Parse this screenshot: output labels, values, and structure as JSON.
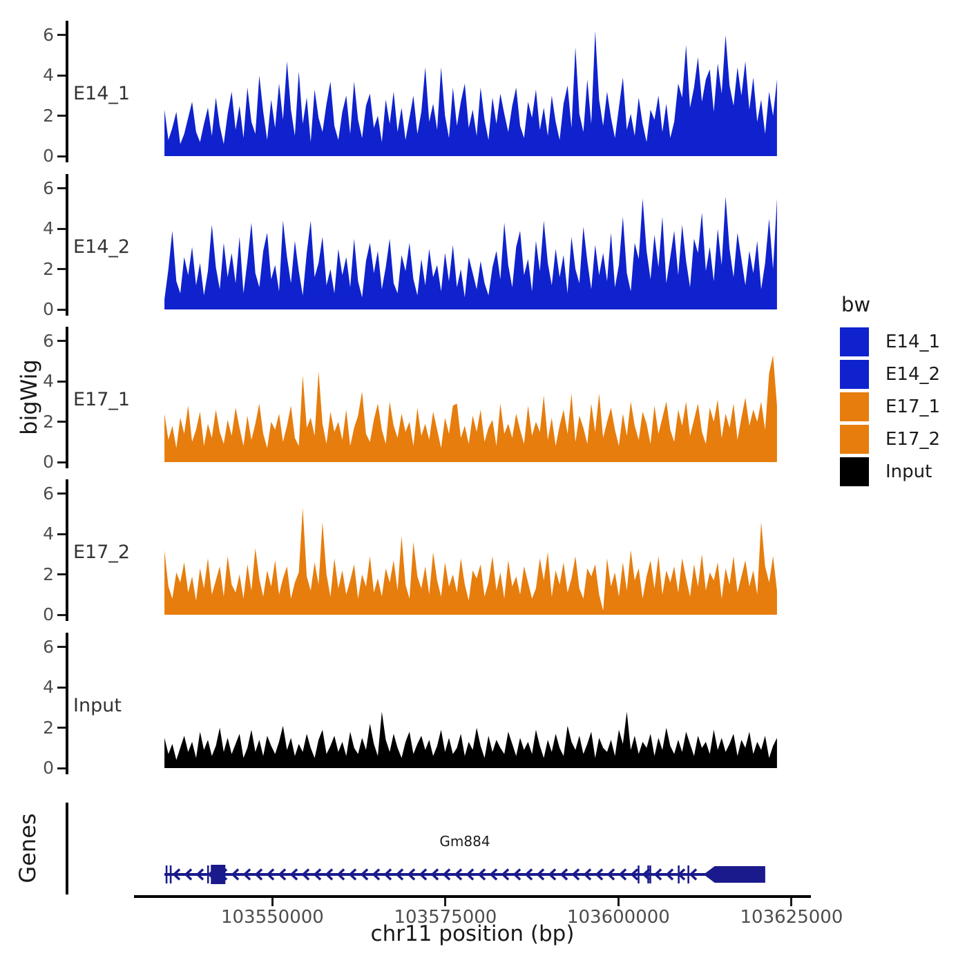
{
  "figure": {
    "background": "#ffffff"
  },
  "axes": {
    "y_label": "bigWig",
    "genes_label": "Genes",
    "x_label": "chr11 position (bp)",
    "y_tick_labels": [
      "0",
      "2",
      "4",
      "6"
    ],
    "x_ticks": [
      {
        "bp": 103550000,
        "label": "103550000"
      },
      {
        "bp": 103575000,
        "label": "103575000"
      },
      {
        "bp": 103600000,
        "label": "103600000"
      },
      {
        "bp": 103625000,
        "label": "103625000"
      }
    ]
  },
  "legend": {
    "title": "bw",
    "items": [
      {
        "label": "E14_1",
        "color": "#0F22CE"
      },
      {
        "label": "E14_2",
        "color": "#0F22CE"
      },
      {
        "label": "E17_1",
        "color": "#E67D0D"
      },
      {
        "label": "E17_2",
        "color": "#E67D0D"
      },
      {
        "label": "Input",
        "color": "#000000"
      }
    ]
  },
  "chart_data": {
    "type": "area",
    "title": "",
    "xlabel": "chr11 position (bp)",
    "ylabel": "bigWig",
    "legend_title": "bw",
    "xlim": [
      103530000,
      103627800
    ],
    "ylim": [
      0,
      6.3
    ],
    "yticks": [
      0,
      2,
      4,
      6
    ],
    "xticks": [
      103550000,
      103575000,
      103600000,
      103625000
    ],
    "data_start": 103534400,
    "data_end": 103622900,
    "tracks": [
      {
        "name": "E14_1",
        "color": "#0F22CE",
        "values": [
          2.3,
          0.8,
          1.4,
          2.2,
          0.6,
          1.1,
          1.9,
          2.7,
          1.2,
          0.7,
          1.6,
          2.4,
          1.0,
          2.9,
          1.5,
          0.6,
          2.1,
          3.2,
          1.3,
          2.5,
          0.9,
          3.4,
          1.7,
          1.1,
          4.0,
          2.2,
          0.8,
          2.8,
          1.4,
          3.6,
          1.8,
          4.7,
          2.3,
          1.0,
          4.2,
          1.6,
          2.9,
          0.7,
          3.3,
          1.9,
          1.2,
          2.6,
          3.7,
          1.5,
          0.8,
          2.2,
          3.0,
          1.1,
          3.7,
          1.8,
          0.9,
          2.5,
          3.1,
          1.4,
          2.0,
          0.7,
          2.8,
          1.6,
          3.2,
          1.2,
          2.4,
          0.8,
          1.9,
          3.0,
          1.1,
          2.2,
          4.4,
          1.7,
          2.6,
          1.3,
          4.4,
          2.0,
          0.9,
          3.4,
          1.5,
          2.7,
          3.6,
          1.4,
          2.3,
          1.0,
          3.4,
          1.8,
          0.8,
          2.9,
          1.6,
          3.1,
          2.1,
          1.2,
          2.5,
          3.4,
          1.5,
          0.9,
          2.7,
          1.9,
          3.3,
          1.3,
          2.4,
          1.0,
          3.0,
          1.7,
          0.8,
          2.6,
          3.5,
          1.4,
          5.4,
          2.1,
          1.2,
          3.8,
          1.6,
          6.2,
          2.8,
          1.5,
          3.2,
          1.9,
          0.9,
          2.4,
          3.9,
          1.3,
          2.1,
          1.0,
          2.9,
          1.6,
          0.7,
          2.3,
          1.8,
          3.0,
          1.2,
          2.6,
          0.9,
          1.7,
          3.6,
          2.9,
          5.5,
          2.4,
          3.4,
          4.9,
          2.7,
          3.8,
          4.3,
          2.2,
          4.6,
          3.1,
          6.0,
          3.5,
          2.5,
          4.4,
          3.0,
          4.7,
          2.3,
          3.9,
          1.7,
          2.8,
          1.1,
          3.2,
          2.0,
          3.8
        ]
      },
      {
        "name": "E14_2",
        "color": "#0F22CE",
        "values": [
          0.5,
          2.0,
          3.9,
          1.4,
          0.8,
          2.6,
          1.7,
          3.1,
          1.2,
          2.3,
          0.7,
          1.9,
          4.2,
          2.1,
          1.0,
          3.3,
          1.6,
          2.8,
          1.3,
          3.6,
          0.8,
          2.4,
          4.3,
          1.8,
          1.1,
          2.9,
          3.8,
          1.5,
          2.2,
          0.9,
          4.4,
          2.6,
          1.3,
          3.4,
          1.9,
          0.7,
          2.8,
          4.4,
          1.6,
          2.3,
          3.6,
          1.2,
          2.0,
          0.8,
          3.0,
          1.7,
          2.6,
          1.1,
          3.5,
          1.4,
          0.6,
          2.4,
          3.3,
          1.8,
          2.9,
          1.0,
          2.1,
          3.5,
          1.3,
          0.8,
          2.7,
          1.9,
          3.3,
          1.5,
          0.7,
          2.5,
          1.2,
          3.0,
          1.6,
          2.2,
          0.9,
          2.8,
          1.4,
          3.2,
          1.1,
          2.0,
          0.6,
          2.6,
          1.8,
          1.0,
          2.4,
          1.3,
          0.7,
          2.1,
          2.9,
          1.5,
          4.3,
          2.2,
          1.1,
          3.1,
          3.9,
          1.7,
          2.5,
          0.9,
          3.4,
          1.9,
          4.4,
          2.3,
          1.2,
          3.0,
          1.6,
          2.7,
          0.8,
          3.6,
          2.0,
          1.3,
          4.1,
          2.4,
          1.0,
          3.2,
          1.7,
          2.8,
          1.4,
          3.8,
          1.1,
          2.2,
          4.6,
          1.8,
          0.9,
          3.3,
          2.5,
          5.5,
          2.9,
          1.5,
          3.7,
          2.1,
          4.6,
          1.3,
          2.6,
          3.9,
          1.7,
          4.2,
          2.4,
          1.1,
          3.5,
          2.8,
          4.8,
          1.9,
          3.1,
          1.4,
          4.0,
          2.2,
          5.6,
          3.0,
          1.6,
          3.8,
          2.5,
          1.2,
          2.9,
          1.8,
          3.4,
          1.0,
          2.3,
          4.5,
          2.0,
          5.5
        ]
      },
      {
        "name": "E17_1",
        "color": "#E67D0D",
        "values": [
          2.4,
          1.1,
          1.8,
          0.7,
          2.2,
          1.4,
          2.8,
          1.0,
          1.6,
          2.5,
          0.8,
          1.9,
          1.2,
          2.6,
          1.5,
          0.9,
          2.1,
          1.3,
          2.7,
          1.7,
          0.8,
          2.3,
          1.1,
          1.9,
          2.9,
          1.4,
          0.7,
          2.0,
          1.6,
          2.4,
          1.0,
          1.8,
          2.8,
          1.2,
          0.8,
          4.3,
          1.7,
          2.2,
          1.3,
          4.5,
          1.9,
          0.9,
          2.5,
          1.5,
          2.0,
          1.1,
          2.6,
          0.8,
          1.7,
          2.3,
          3.5,
          1.4,
          1.0,
          2.1,
          2.9,
          1.6,
          0.9,
          3.0,
          1.8,
          1.2,
          2.4,
          1.5,
          2.0,
          0.8,
          2.7,
          1.3,
          1.9,
          1.1,
          2.5,
          1.6,
          0.7,
          2.2,
          1.4,
          2.8,
          2.9,
          1.2,
          1.8,
          0.9,
          2.3,
          1.5,
          2.6,
          1.0,
          1.7,
          2.1,
          0.8,
          2.9,
          1.4,
          1.9,
          1.2,
          2.4,
          1.6,
          0.9,
          2.8,
          1.3,
          2.0,
          1.5,
          3.3,
          1.1,
          2.2,
          0.8,
          1.8,
          2.6,
          1.4,
          3.4,
          1.0,
          2.3,
          1.7,
          0.9,
          2.9,
          1.5,
          3.4,
          1.2,
          2.0,
          2.7,
          1.6,
          0.8,
          2.4,
          1.3,
          3.0,
          1.8,
          1.1,
          2.5,
          1.9,
          0.9,
          2.8,
          1.4,
          2.2,
          3.0,
          1.6,
          1.0,
          2.6,
          1.8,
          3.0,
          1.3,
          2.1,
          2.9,
          1.5,
          0.9,
          2.7,
          2.0,
          3.1,
          1.2,
          2.4,
          1.7,
          2.9,
          1.1,
          2.2,
          3.2,
          1.8,
          2.6,
          2.0,
          3.0,
          1.6,
          4.4,
          5.3,
          2.8
        ]
      },
      {
        "name": "E17_2",
        "color": "#E67D0D",
        "values": [
          3.2,
          1.4,
          0.8,
          2.1,
          1.6,
          2.6,
          1.1,
          1.9,
          0.7,
          2.3,
          1.3,
          2.8,
          1.0,
          1.7,
          2.4,
          0.9,
          2.9,
          1.5,
          1.1,
          2.0,
          0.8,
          2.5,
          1.2,
          3.3,
          1.8,
          0.9,
          2.2,
          1.4,
          2.7,
          1.0,
          1.8,
          2.4,
          0.8,
          1.6,
          2.1,
          5.3,
          1.9,
          1.2,
          2.6,
          1.5,
          4.6,
          2.0,
          0.9,
          2.8,
          1.3,
          2.2,
          1.0,
          1.7,
          2.5,
          0.8,
          2.0,
          1.4,
          2.9,
          1.1,
          1.8,
          0.9,
          2.3,
          1.6,
          2.7,
          1.2,
          3.9,
          1.5,
          0.8,
          3.6,
          1.9,
          1.3,
          2.4,
          1.0,
          3.1,
          1.7,
          0.9,
          2.6,
          1.4,
          2.0,
          1.1,
          2.8,
          1.5,
          0.7,
          2.2,
          1.8,
          2.5,
          0.9,
          1.6,
          2.9,
          1.2,
          2.1,
          0.8,
          2.7,
          1.4,
          1.9,
          1.0,
          2.4,
          1.6,
          0.8,
          1.3,
          2.8,
          1.7,
          3.1,
          0.9,
          2.2,
          1.5,
          2.6,
          1.1,
          1.8,
          2.9,
          1.3,
          0.8,
          2.3,
          1.9,
          2.5,
          1.0,
          0.2,
          2.8,
          1.4,
          2.1,
          0.9,
          2.6,
          1.2,
          3.2,
          1.7,
          2.3,
          0.8,
          1.9,
          2.7,
          1.3,
          2.9,
          1.0,
          2.2,
          1.6,
          2.4,
          1.1,
          2.8,
          1.8,
          0.9,
          2.5,
          1.4,
          3.0,
          1.2,
          2.1,
          1.7,
          2.6,
          0.8,
          2.3,
          1.5,
          2.9,
          1.1,
          1.9,
          2.7,
          1.4,
          2.2,
          1.0,
          4.6,
          2.4,
          1.6,
          2.9,
          1.2
        ]
      },
      {
        "name": "Input",
        "color": "#000000",
        "values": [
          1.5,
          0.7,
          1.2,
          0.4,
          1.0,
          1.6,
          0.8,
          1.3,
          0.5,
          1.8,
          0.9,
          1.4,
          0.6,
          1.1,
          2.0,
          0.8,
          1.5,
          0.7,
          1.2,
          1.7,
          0.5,
          1.0,
          1.9,
          0.8,
          1.4,
          0.6,
          1.6,
          1.1,
          0.7,
          1.3,
          2.1,
          0.9,
          1.5,
          0.6,
          1.2,
          0.8,
          1.7,
          1.0,
          0.5,
          1.4,
          1.9,
          0.7,
          1.1,
          1.6,
          0.8,
          1.3,
          0.6,
          1.8,
          1.0,
          0.7,
          1.5,
          0.9,
          2.2,
          1.2,
          0.6,
          2.8,
          1.4,
          0.8,
          1.7,
          1.0,
          0.5,
          1.3,
          1.8,
          0.7,
          1.2,
          1.6,
          0.9,
          1.4,
          0.6,
          1.1,
          1.9,
          0.8,
          1.5,
          0.7,
          1.0,
          1.7,
          0.6,
          1.3,
          0.9,
          2.0,
          1.1,
          0.5,
          1.6,
          0.8,
          1.4,
          1.0,
          0.7,
          1.8,
          1.2,
          0.6,
          1.5,
          0.9,
          1.3,
          0.7,
          1.9,
          1.1,
          0.5,
          1.4,
          0.8,
          1.7,
          1.0,
          0.6,
          2.1,
          1.3,
          0.9,
          1.6,
          0.7,
          1.2,
          1.8,
          0.5,
          1.5,
          1.0,
          0.8,
          1.4,
          0.6,
          1.9,
          1.2,
          2.8,
          0.9,
          1.6,
          0.7,
          1.3,
          1.0,
          1.7,
          0.6,
          1.5,
          0.9,
          2.0,
          1.1,
          0.7,
          1.4,
          0.8,
          1.8,
          1.2,
          0.6,
          1.6,
          1.0,
          1.3,
          0.7,
          1.9,
          0.9,
          1.5,
          0.8,
          1.2,
          1.7,
          0.6,
          1.4,
          1.0,
          1.8,
          0.7,
          1.3,
          0.9,
          1.6,
          0.5,
          1.1,
          1.5
        ]
      }
    ],
    "gene": {
      "name": "Gm884",
      "chrom": "chr11",
      "strand": "-",
      "color": "#1A1A8C",
      "start": 103534400,
      "end": 103621200,
      "line": [
        103534400,
        103612500
      ],
      "small_exon": [
        103541100,
        103543200
      ],
      "big_exon": [
        103612300,
        103621200
      ],
      "exon_ticks": [
        103534700,
        103535300,
        103540700,
        103602900,
        103604300,
        103604600,
        103608700,
        103610100
      ]
    }
  }
}
